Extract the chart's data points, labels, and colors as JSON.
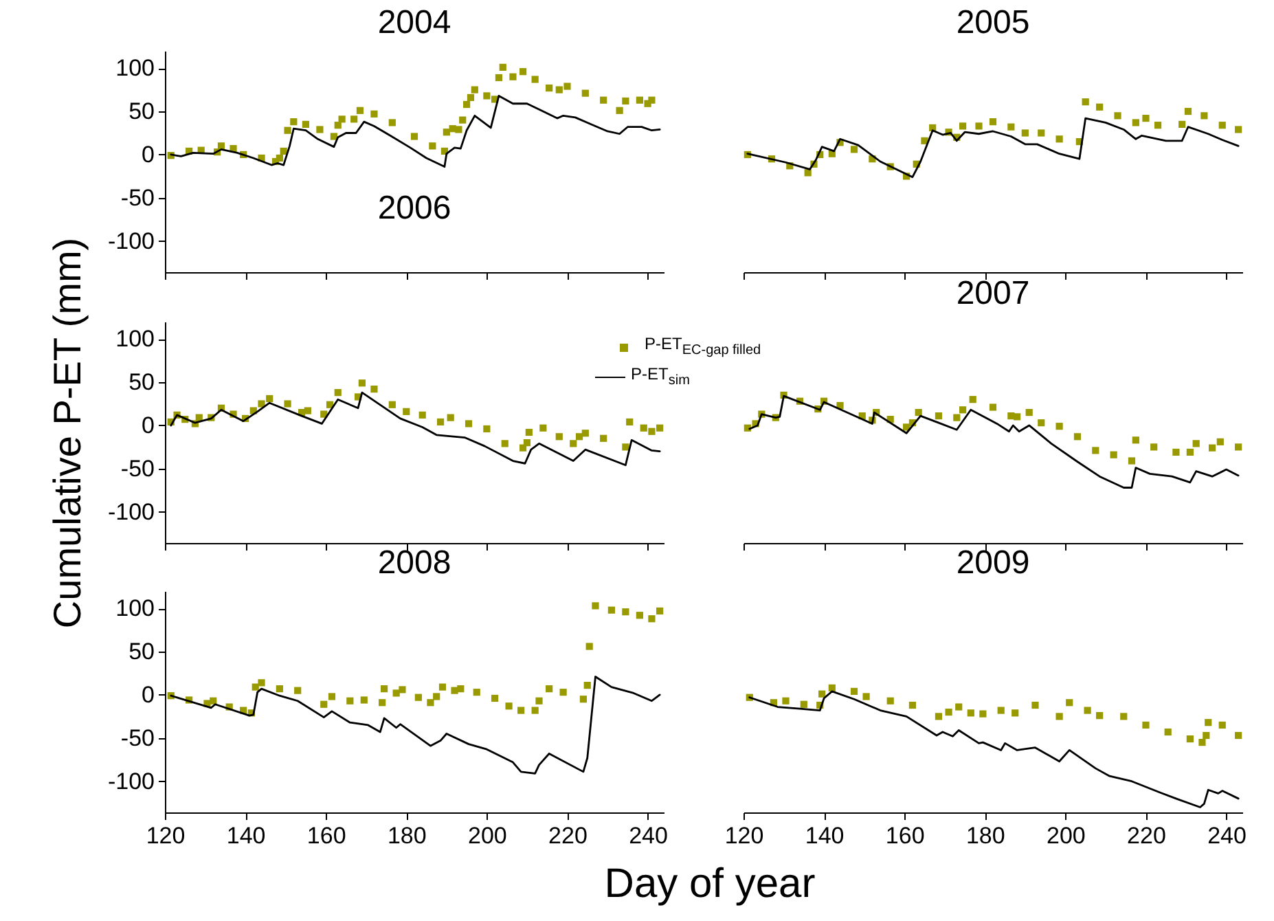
{
  "chart_data": [
    {
      "type": "line",
      "title": "2004",
      "xlim": [
        120,
        244
      ],
      "xticks": [
        120,
        140,
        160,
        180,
        200,
        220,
        240
      ],
      "ylim": [
        -136,
        120
      ],
      "yticks": [
        -100,
        -50,
        0,
        50,
        100
      ],
      "tick_labels": "y",
      "series": [
        {
          "type": "scatter",
          "marker": "square",
          "color": "#999900",
          "x": [
            121.5,
            126,
            129,
            133,
            134,
            137,
            139.5,
            144,
            147.5,
            148.5,
            149.5,
            150.5,
            152,
            155,
            158.5,
            162,
            163,
            164,
            167,
            168.5,
            172,
            176.5,
            182,
            186.5,
            189.5,
            190,
            191.5,
            193,
            194,
            195,
            196,
            197,
            200,
            202,
            203,
            204,
            206.5,
            209,
            212,
            215.5,
            218,
            220,
            224.5,
            229,
            233,
            234.5,
            238,
            240,
            241
          ],
          "values": [
            -1,
            4,
            5,
            3,
            10,
            7,
            0,
            -4,
            -8,
            -4,
            4,
            28,
            38,
            35,
            29,
            21,
            34,
            41,
            41,
            51,
            47,
            37,
            21,
            10,
            4,
            26,
            30,
            29,
            40,
            58,
            66,
            75,
            68,
            64,
            89,
            101,
            90,
            96,
            87,
            77,
            75,
            79,
            71,
            63,
            51,
            62,
            63,
            59,
            63
          ]
        },
        {
          "type": "line",
          "color": "#000000",
          "x": [
            121.5,
            124,
            127,
            132,
            134,
            138,
            142,
            146.5,
            148,
            149.5,
            151,
            152,
            155,
            158,
            162,
            163,
            165,
            167.5,
            169.5,
            172,
            176,
            181,
            185,
            189.5,
            190,
            192,
            193.5,
            195,
            197,
            201,
            203,
            206.5,
            210,
            214,
            217.5,
            219,
            222,
            226,
            230,
            233,
            235,
            238.5,
            241,
            243
          ],
          "values": [
            0,
            -2,
            2,
            1,
            6,
            2,
            -4,
            -12,
            -10,
            -12,
            10,
            30,
            28,
            18,
            9,
            20,
            25,
            25,
            38,
            33,
            22,
            8,
            -4,
            -14,
            1,
            8,
            7,
            28,
            45,
            31,
            68,
            59,
            59,
            50,
            42,
            45,
            43,
            35,
            27,
            24,
            32,
            32,
            28,
            29
          ]
        }
      ]
    },
    {
      "type": "line",
      "title": "2005",
      "xlim": [
        120,
        244
      ],
      "xticks": [
        120,
        140,
        160,
        180,
        200,
        220,
        240
      ],
      "ylim": [
        -136,
        100
      ],
      "yticks": [
        -100,
        -50,
        0,
        50,
        100
      ],
      "tick_labels": false,
      "series": [
        {
          "type": "scatter",
          "marker": "square",
          "color": "#999900",
          "x": [
            121,
            127,
            131.5,
            136,
            137.5,
            139,
            142,
            144,
            147.5,
            152,
            156.5,
            160.5,
            163,
            165,
            167,
            171,
            173,
            174.5,
            178.5,
            182,
            186.5,
            190,
            194,
            198.5,
            203.5,
            205,
            208.5,
            213,
            217.5,
            220,
            223,
            229,
            230.5,
            234.5,
            239,
            243
          ],
          "values": [
            0,
            -5,
            -13,
            -21,
            -11,
            0,
            1,
            14,
            6,
            -5,
            -14,
            -25,
            -11,
            16,
            31,
            26,
            20,
            33,
            33,
            38,
            32,
            25,
            25,
            18,
            15,
            61,
            55,
            45,
            37,
            42,
            34,
            35,
            50,
            45,
            34,
            29
          ]
        },
        {
          "type": "line",
          "color": "#000000",
          "x": [
            121,
            130.5,
            136.5,
            138,
            139.5,
            142.5,
            144,
            148.5,
            154,
            162,
            164,
            167,
            169.5,
            171.5,
            173,
            175,
            178.5,
            182,
            186.5,
            190,
            193,
            198.5,
            203.5,
            205,
            210,
            214.5,
            217.5,
            219,
            225,
            229,
            230.5,
            235.5,
            239,
            243
          ],
          "values": [
            1,
            -9,
            -17,
            -6,
            9,
            4,
            18,
            11,
            -8,
            -26,
            -8,
            28,
            23,
            25,
            16,
            26,
            24,
            27,
            21,
            12,
            12,
            1,
            -5,
            42,
            37,
            29,
            18,
            22,
            16,
            16,
            32,
            24,
            17,
            10
          ]
        }
      ]
    },
    {
      "type": "line",
      "title": "2006",
      "ylabel": "Cumulative P-ET (mm)",
      "legend": "top right",
      "xlim": [
        120,
        244
      ],
      "xticks": [
        120,
        140,
        160,
        180,
        200,
        220,
        240
      ],
      "ylim": [
        -136,
        120
      ],
      "yticks": [
        -100,
        -50,
        0,
        50,
        100
      ],
      "tick_labels": "y",
      "series": [
        {
          "type": "scatter",
          "marker": "square",
          "name": "P-ET$_{EC-gap filled}$",
          "color": "#999900",
          "x": [
            121.5,
            123,
            125,
            127.5,
            128.5,
            131.5,
            134,
            137,
            140,
            142,
            144,
            146,
            150.5,
            154,
            155.5,
            159.5,
            161,
            163,
            168,
            169,
            172,
            176.5,
            180,
            184,
            188.5,
            191,
            195.5,
            200,
            204.5,
            209,
            210,
            210.5,
            214,
            218,
            221.5,
            223,
            224.5,
            229,
            234.5,
            235.5,
            239,
            241,
            243
          ],
          "values": [
            4,
            12,
            7,
            2,
            9,
            9,
            20,
            13,
            8,
            17,
            25,
            31,
            25,
            15,
            17,
            13,
            24,
            38,
            33,
            49,
            42,
            24,
            16,
            12,
            4,
            9,
            2,
            -4,
            -21,
            -26,
            -20,
            -8,
            -3,
            -13,
            -21,
            -13,
            -9,
            -15,
            -25,
            4,
            -3,
            -7,
            -3
          ]
        },
        {
          "type": "line",
          "name": "P-ET$_{sim}$",
          "color": "#000000",
          "x": [
            121.5,
            123,
            127.5,
            131.5,
            134,
            139.5,
            143,
            146,
            154,
            159,
            163,
            168,
            169,
            178.5,
            184,
            187.5,
            194.5,
            199.5,
            206.5,
            209.5,
            211,
            213,
            221.5,
            224.5,
            234.5,
            236,
            241,
            243
          ],
          "values": [
            0,
            12,
            3,
            8,
            18,
            5,
            16,
            26,
            11,
            2,
            30,
            20,
            38,
            8,
            -2,
            -11,
            -14,
            -24,
            -41,
            -44,
            -28,
            -21,
            -41,
            -28,
            -46,
            -17,
            -29,
            -30
          ]
        }
      ]
    },
    {
      "type": "line",
      "title": "2007",
      "xlim": [
        120,
        244
      ],
      "xticks": [
        120,
        140,
        160,
        180,
        200,
        220,
        240
      ],
      "ylim": [
        -136,
        100
      ],
      "yticks": [
        -100,
        -50,
        0,
        50,
        100
      ],
      "tick_labels": false,
      "series": [
        {
          "type": "scatter",
          "marker": "square",
          "color": "#999900",
          "x": [
            121,
            123,
            124.5,
            128,
            130,
            134,
            138.5,
            140,
            144,
            149.5,
            152,
            153,
            156.5,
            160.5,
            162,
            163.5,
            168.5,
            173,
            174.5,
            177,
            182,
            186.5,
            188,
            191,
            194,
            198.5,
            203,
            207.5,
            212,
            216.5,
            217.5,
            222,
            227.5,
            231,
            232.5,
            236.5,
            238.5,
            243
          ],
          "values": [
            -3,
            2,
            13,
            9,
            35,
            28,
            19,
            28,
            23,
            11,
            6,
            15,
            7,
            -2,
            3,
            15,
            11,
            9,
            18,
            30,
            21,
            11,
            10,
            15,
            3,
            -1,
            -13,
            -29,
            -34,
            -41,
            -17,
            -25,
            -31,
            -31,
            -21,
            -26,
            -19,
            -25
          ]
        },
        {
          "type": "line",
          "color": "#000000",
          "x": [
            121.5,
            123.5,
            124.5,
            128,
            129,
            130,
            139,
            140,
            152,
            152.5,
            160.5,
            164,
            168.5,
            173,
            176.5,
            183,
            186,
            187,
            188.5,
            191,
            196.5,
            203,
            208.5,
            214.5,
            216.5,
            217.5,
            221,
            226.5,
            231,
            232.5,
            236.5,
            240,
            243
          ],
          "values": [
            -4,
            0,
            13,
            9,
            10,
            34,
            18,
            27,
            2,
            15,
            -9,
            11,
            3,
            -5,
            18,
            2,
            -7,
            0,
            -7,
            0,
            -21,
            -42,
            -59,
            -72,
            -72,
            -49,
            -56,
            -59,
            -66,
            -53,
            -59,
            -51,
            -58
          ]
        }
      ]
    },
    {
      "type": "line",
      "title": "2008",
      "xlabel": "Day of year",
      "xlim": [
        120,
        244
      ],
      "xticks": [
        120,
        140,
        160,
        180,
        200,
        220,
        240
      ],
      "ylim": [
        -136,
        120
      ],
      "yticks": [
        -100,
        -50,
        0,
        50,
        100
      ],
      "series": [
        {
          "type": "scatter",
          "marker": "square",
          "color": "#999900",
          "x": [
            121.5,
            126,
            130.5,
            132,
            136,
            139.5,
            141.5,
            142.5,
            144,
            148.5,
            153,
            159.5,
            161.5,
            166,
            169.5,
            174,
            174.5,
            177.5,
            179,
            183,
            186,
            187.5,
            189,
            192,
            193.5,
            197.5,
            202,
            205.5,
            208.5,
            212,
            213,
            215.5,
            219,
            224,
            225,
            225.5,
            227,
            231,
            234.5,
            238,
            241,
            243
          ],
          "values": [
            -1,
            -6,
            -10,
            -7,
            -14,
            -18,
            -21,
            9,
            14,
            7,
            5,
            -11,
            -2,
            -7,
            -6,
            -9,
            7,
            2,
            6,
            -3,
            -9,
            -2,
            9,
            5,
            7,
            3,
            -4,
            -13,
            -18,
            -18,
            -7,
            7,
            3,
            -5,
            11,
            56,
            103,
            98,
            96,
            92,
            88,
            97
          ]
        },
        {
          "type": "line",
          "color": "#000000",
          "x": [
            121.5,
            131.5,
            132.5,
            141,
            142,
            143,
            144,
            148.5,
            153,
            159.5,
            161.5,
            166,
            170.5,
            173.5,
            174.5,
            177.5,
            178.5,
            186,
            188.5,
            190,
            195.5,
            200,
            206.5,
            208.5,
            212,
            213,
            215.5,
            224,
            225,
            227,
            231,
            236.5,
            241,
            243
          ],
          "values": [
            -1,
            -15,
            -11,
            -24,
            -23,
            3,
            7,
            -1,
            -7,
            -26,
            -19,
            -32,
            -35,
            -43,
            -27,
            -38,
            -34,
            -59,
            -53,
            -45,
            -57,
            -63,
            -78,
            -89,
            -91,
            -81,
            -68,
            -89,
            -73,
            21,
            9,
            2,
            -7,
            0
          ]
        }
      ]
    },
    {
      "type": "line",
      "title": "2009",
      "xlim": [
        120,
        244
      ],
      "xticks": [
        120,
        140,
        160,
        180,
        200,
        220,
        240
      ],
      "ylim": [
        -136,
        100
      ],
      "yticks": [
        -100,
        -50,
        0,
        50,
        100
      ],
      "tick_labels": "x",
      "series": [
        {
          "type": "scatter",
          "marker": "square",
          "color": "#999900",
          "x": [
            121.5,
            127.5,
            130.5,
            135,
            139,
            139.5,
            142,
            147.5,
            150.5,
            156.5,
            162,
            168.5,
            171,
            173.5,
            176.5,
            179.5,
            184,
            187.5,
            192.5,
            198.5,
            201,
            205.5,
            208.5,
            214.5,
            220,
            225.5,
            231,
            234,
            235,
            235.5,
            239,
            243
          ],
          "values": [
            -3,
            -9,
            -7,
            -11,
            -12,
            1,
            8,
            4,
            -2,
            -7,
            -12,
            -25,
            -20,
            -14,
            -21,
            -22,
            -18,
            -21,
            -12,
            -25,
            -9,
            -18,
            -24,
            -25,
            -35,
            -43,
            -51,
            -55,
            -47,
            -32,
            -35,
            -47
          ]
        },
        {
          "type": "line",
          "color": "#000000",
          "x": [
            121.5,
            128.5,
            134,
            139,
            140,
            142,
            147.5,
            154,
            160.5,
            168,
            169.5,
            172,
            173.5,
            178.5,
            179.5,
            184,
            185,
            188,
            192.5,
            198.5,
            201,
            207.5,
            211,
            216.5,
            223.5,
            227.5,
            233.5,
            234.5,
            235.5,
            238,
            239,
            243
          ],
          "values": [
            -3,
            -14,
            -16,
            -18,
            -4,
            4,
            -5,
            -18,
            -25,
            -47,
            -43,
            -48,
            -41,
            -56,
            -55,
            -64,
            -56,
            -64,
            -61,
            -77,
            -64,
            -85,
            -94,
            -100,
            -113,
            -120,
            -130,
            -126,
            -110,
            -114,
            -111,
            -120
          ]
        }
      ]
    }
  ]
}
